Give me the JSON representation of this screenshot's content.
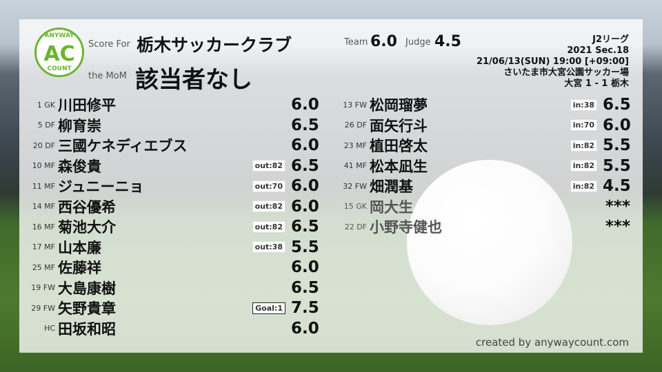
{
  "header": {
    "score_for_label": "Score For",
    "team": "栃木サッカークラブ",
    "mom_label": "the MoM",
    "mom": "該当者なし",
    "team_label": "Team",
    "team_score": "6.0",
    "judge_label": "Judge",
    "judge_score": "4.5"
  },
  "logo": {
    "top": "ANYWAY",
    "mid": "AC",
    "bottom": "COUNT",
    "color": "#6bb52f"
  },
  "match": {
    "league": "J2リーグ",
    "section": "2021 Sec.18",
    "datetime": "21/06/13(SUN) 19:00 [+09:00]",
    "venue": "さいたま市大宮公園サッカー場",
    "result": "大宮 1 - 1 栃木"
  },
  "left": [
    {
      "num": "1 GK",
      "name": "川田修平",
      "badge": "",
      "score": "6.0"
    },
    {
      "num": "5 DF",
      "name": "柳育崇",
      "badge": "",
      "score": "6.5"
    },
    {
      "num": "20 DF",
      "name": "三國ケネディエブス",
      "badge": "",
      "score": "6.0"
    },
    {
      "num": "10 MF",
      "name": "森俊貴",
      "badge": "out:82",
      "score": "6.5"
    },
    {
      "num": "11 MF",
      "name": "ジュニーニョ",
      "badge": "out:70",
      "score": "6.0"
    },
    {
      "num": "14 MF",
      "name": "西谷優希",
      "badge": "out:82",
      "score": "6.0"
    },
    {
      "num": "16 MF",
      "name": "菊池大介",
      "badge": "out:82",
      "score": "6.5"
    },
    {
      "num": "17 MF",
      "name": "山本廉",
      "badge": "out:38",
      "score": "5.5"
    },
    {
      "num": "25 MF",
      "name": "佐藤祥",
      "badge": "",
      "score": "6.0"
    },
    {
      "num": "19 FW",
      "name": "大島康樹",
      "badge": "",
      "score": "6.5"
    },
    {
      "num": "29 FW",
      "name": "矢野貴章",
      "badge": "Goal:1",
      "score": "7.5"
    },
    {
      "num": "HC",
      "name": "田坂和昭",
      "badge": "",
      "score": "6.0"
    }
  ],
  "right": [
    {
      "num": "13 FW",
      "name": "松岡瑠夢",
      "badge": "in:38",
      "score": "6.5"
    },
    {
      "num": "26 DF",
      "name": "面矢行斗",
      "badge": "in:70",
      "score": "6.0"
    },
    {
      "num": "23 MF",
      "name": "植田啓太",
      "badge": "in:82",
      "score": "5.5"
    },
    {
      "num": "41 MF",
      "name": "松本凪生",
      "badge": "in:82",
      "score": "5.5"
    },
    {
      "num": "32 FW",
      "name": "畑潤基",
      "badge": "in:82",
      "score": "4.5"
    },
    {
      "num": "15 GK",
      "name": "岡大生",
      "badge": "",
      "score": "***"
    },
    {
      "num": "22 DF",
      "name": "小野寺健也",
      "badge": "",
      "score": "***"
    }
  ],
  "credit": "created by anywaycount.com"
}
